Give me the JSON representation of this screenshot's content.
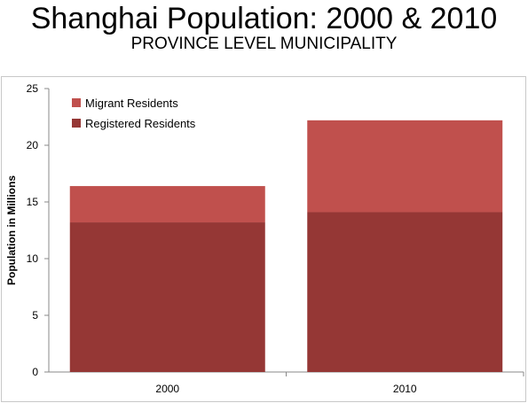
{
  "title": "Shanghai Population: 2000 & 2010",
  "subtitle": "PROVINCE LEVEL MUNICIPALITY",
  "chart_data": {
    "type": "bar",
    "stacked": true,
    "categories": [
      "2000",
      "2010"
    ],
    "series": [
      {
        "name": "Registered Residents",
        "values": [
          13.2,
          14.1
        ],
        "color": "#953735"
      },
      {
        "name": "Migrant Residents",
        "values": [
          3.2,
          8.1
        ],
        "color": "#c0504d"
      }
    ],
    "ylabel": "Population in Millions",
    "xlabel": "",
    "ylim": [
      0,
      25
    ],
    "yticks": [
      "0",
      "5",
      "10",
      "15",
      "20",
      "25"
    ],
    "grid": false,
    "legend_position": "top-left",
    "legend_order": [
      "Migrant Residents",
      "Registered Residents"
    ]
  }
}
